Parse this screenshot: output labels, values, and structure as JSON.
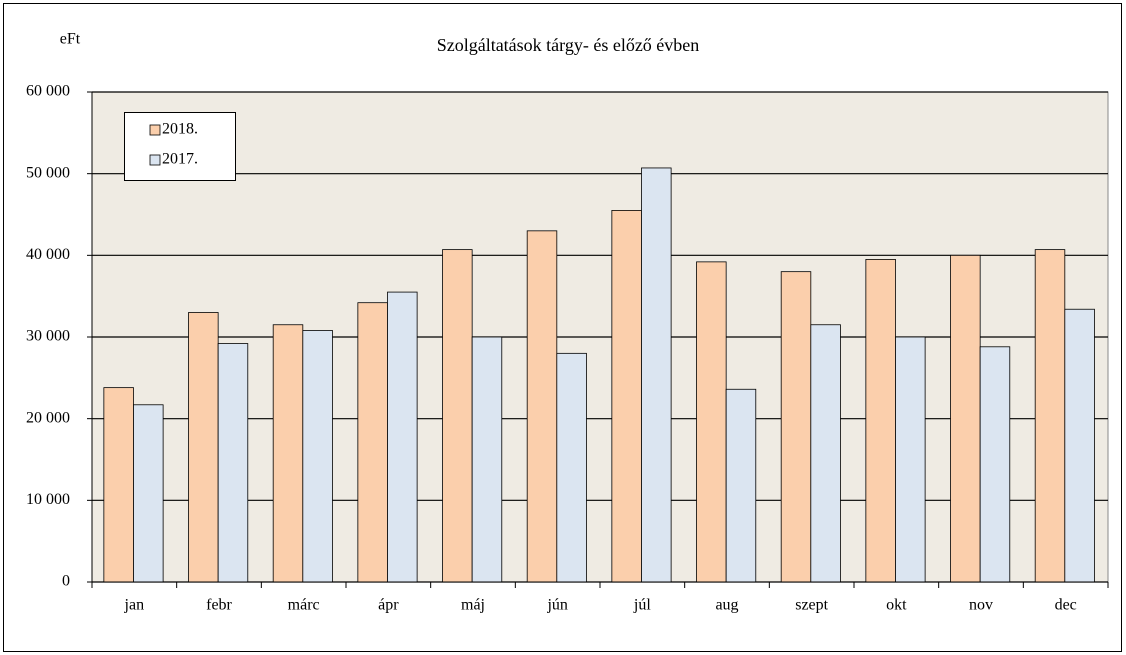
{
  "chart_data": {
    "type": "bar",
    "title": "Szolgáltatások  tárgy-  és előző évben",
    "y_axis_label": "eFt",
    "categories": [
      "jan",
      "febr",
      "márc",
      "ápr",
      "máj",
      "jún",
      "júl",
      "aug",
      "szept",
      "okt",
      "nov",
      "dec"
    ],
    "series": [
      {
        "name": "2018.",
        "color": "#fbcfac",
        "values": [
          23800,
          33000,
          31500,
          34200,
          40700,
          43000,
          45500,
          39200,
          38000,
          39500,
          40000,
          40700
        ]
      },
      {
        "name": "2017.",
        "color": "#dbe5f1",
        "values": [
          21700,
          29200,
          30800,
          35500,
          30000,
          28000,
          50700,
          23600,
          31500,
          30000,
          28800,
          33400
        ]
      }
    ],
    "ylim": [
      0,
      60000
    ],
    "yticks": [
      0,
      {
        "value": 10000,
        "label": "10 000"
      },
      {
        "value": 20000,
        "label": "20 000"
      },
      {
        "value": 30000,
        "label": "30 000"
      },
      {
        "value": 40000,
        "label": "40 000"
      },
      {
        "value": 50000,
        "label": "50 000"
      },
      {
        "value": 60000,
        "label": "60 000"
      }
    ],
    "grid": true,
    "legend": "top-left",
    "plot_background": "#efebe3"
  }
}
